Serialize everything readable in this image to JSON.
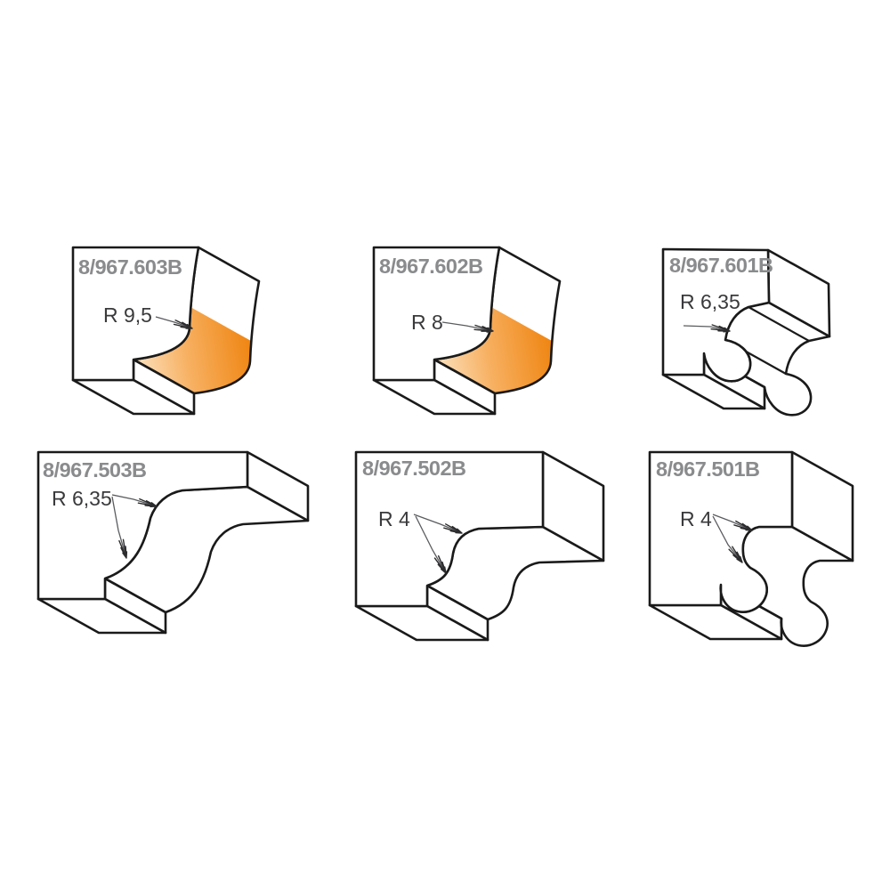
{
  "page": {
    "background": "#ffffff",
    "description": "Six router-bit edge profile diagrams"
  },
  "figures": [
    {
      "code": "8/967.603B",
      "radius_label": "R 9,5",
      "profile": "cove",
      "arrow_count": 1
    },
    {
      "code": "8/967.602B",
      "radius_label": "R 8",
      "profile": "cove",
      "arrow_count": 1
    },
    {
      "code": "8/967.601B",
      "radius_label": "R 6,35",
      "profile": "cove-with-bead",
      "arrow_count": 1
    },
    {
      "code": "8/967.503B",
      "radius_label": "R 6,35",
      "profile": "ogee",
      "arrow_count": 2
    },
    {
      "code": "8/967.502B",
      "radius_label": "R 4",
      "profile": "ogee",
      "arrow_count": 2
    },
    {
      "code": "8/967.501B",
      "radius_label": "R 4",
      "profile": "ogee-with-bead",
      "arrow_count": 2
    }
  ],
  "colors": {
    "outline": "#1a1a1a",
    "part_number_gray": "#8a8b8d",
    "radius_text": "#3a3a3c",
    "cut_surface_deep": "#EF8410",
    "cut_surface_mid": "#F7B061",
    "cut_surface_light": "#FCE3C2",
    "step_light": "#FDF0DE",
    "step_dark": "#F7C183",
    "background": "#ffffff"
  }
}
